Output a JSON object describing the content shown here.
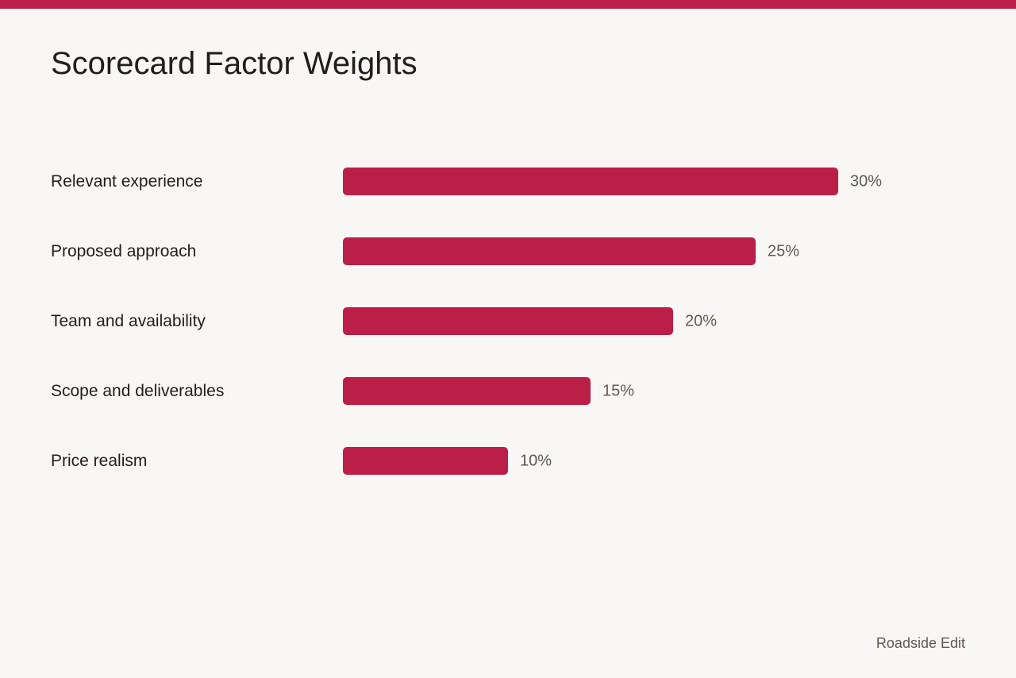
{
  "accent_color": "#bb1f48",
  "title": "Scorecard Factor Weights",
  "footer": {
    "credit": "Roadside Edit"
  },
  "chart_data": {
    "type": "bar",
    "orientation": "horizontal",
    "title": "Scorecard Factor Weights",
    "xlabel": "",
    "ylabel": "",
    "xlim": [
      0,
      30
    ],
    "grid": false,
    "bar_color": "#bb1f48",
    "categories": [
      "Relevant experience",
      "Proposed approach",
      "Team and availability",
      "Scope and deliverables",
      "Price realism"
    ],
    "values": [
      30,
      25,
      20,
      15,
      10
    ],
    "value_labels": [
      "30%",
      "25%",
      "20%",
      "15%",
      "10%"
    ]
  }
}
